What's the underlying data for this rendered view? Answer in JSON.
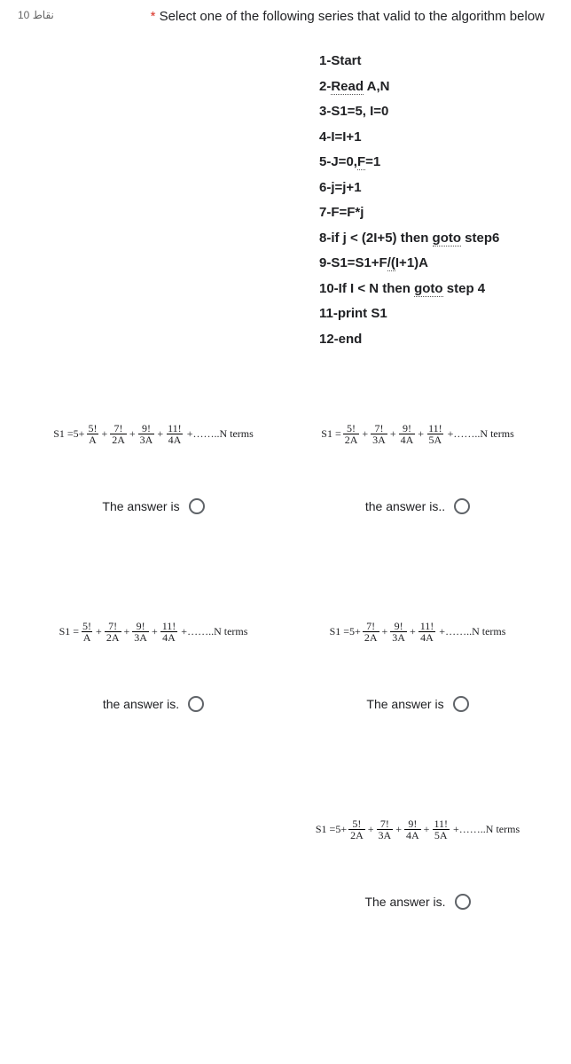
{
  "points_label": "نقاط 10",
  "required_star": "*",
  "question_text": "Select one of the following series that valid to the algorithm below",
  "algorithm_steps": [
    "1-Start",
    "2-Read  A,N",
    "3-S1=5, I=0",
    "4-I=I+1",
    "5-J=0,F=1",
    "6-j=j+1",
    "7-F=F*j",
    "8-if j < (2I+5) then goto step6",
    "9-S1=S1+F/(I+1)A",
    "10-If I < N then goto step 4",
    "11-print S1",
    "12-end"
  ],
  "labels": {
    "the_answer_is_cap": "The answer is",
    "the_answer_is_dot": "The answer is.",
    "the_answer_is_lower": "the answer is.",
    "the_answer_is_lower_dot": "the answer is.."
  },
  "options": {
    "a": {
      "lead": "S1 =5+",
      "fracs": [
        [
          "5!",
          "A"
        ],
        [
          "7!",
          "2A"
        ],
        [
          "9!",
          "3A"
        ],
        [
          "11!",
          "4A"
        ]
      ],
      "tail": "+……..N terms",
      "answer_label": "the_answer_is_cap"
    },
    "b": {
      "lead": "S1 =",
      "fracs": [
        [
          "5!",
          "2A"
        ],
        [
          "7!",
          "3A"
        ],
        [
          "9!",
          "4A"
        ],
        [
          "11!",
          "5A"
        ]
      ],
      "tail": "+……..N terms",
      "answer_label": "the_answer_is_lower_dot"
    },
    "c": {
      "lead": "S1 =",
      "fracs": [
        [
          "5!",
          "A"
        ],
        [
          "7!",
          "2A"
        ],
        [
          "9!",
          "3A"
        ],
        [
          "11!",
          "4A"
        ]
      ],
      "tail": "+……..N terms",
      "answer_label": "the_answer_is_lower"
    },
    "d": {
      "lead": "S1 =5+",
      "fracs": [
        [
          "7!",
          "2A"
        ],
        [
          "9!",
          "3A"
        ],
        [
          "11!",
          "4A"
        ]
      ],
      "tail": "+……..N terms",
      "answer_label": "the_answer_is_cap"
    },
    "e": {
      "lead": "S1 =5+",
      "fracs": [
        [
          "5!",
          "2A"
        ],
        [
          "7!",
          "3A"
        ],
        [
          "9!",
          "4A"
        ],
        [
          "11!",
          "5A"
        ]
      ],
      "tail": "+……..N terms",
      "answer_label": "the_answer_is_dot"
    }
  }
}
